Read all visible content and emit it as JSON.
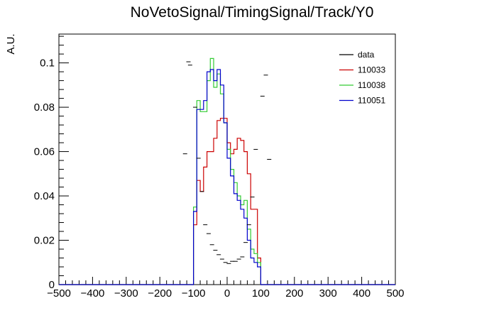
{
  "chart_data": {
    "type": "line",
    "title": "NoVetoSignal/TimingSignal/Track/Y0",
    "xlabel": "",
    "ylabel": "A.U.",
    "xlim": [
      -500,
      500
    ],
    "ylim": [
      0,
      0.113
    ],
    "x_ticks": [
      -500,
      -400,
      -300,
      -200,
      -100,
      0,
      100,
      200,
      300,
      400,
      500
    ],
    "x_tick_labels": [
      "−500",
      "−400",
      "−300",
      "−200",
      "−100",
      "0",
      "100",
      "200",
      "300",
      "400",
      "500"
    ],
    "y_ticks": [
      0,
      0.02,
      0.04,
      0.06,
      0.08,
      0.1
    ],
    "y_tick_labels": [
      "0",
      "0.02",
      "0.04",
      "0.06",
      "0.08",
      "0.1"
    ],
    "legend": {
      "placement": "top-right",
      "entries": [
        {
          "label": "data",
          "color": "#000000"
        },
        {
          "label": "110033",
          "color": "#cc0000"
        },
        {
          "label": "110038",
          "color": "#33cc33"
        },
        {
          "label": "110051",
          "color": "#0000cc"
        }
      ]
    },
    "bin_edges": [
      -110,
      -100,
      -90,
      -80,
      -70,
      -60,
      -50,
      -40,
      -30,
      -20,
      -10,
      0,
      10,
      20,
      30,
      40,
      50,
      60,
      70,
      80,
      90,
      100
    ],
    "data_points": [
      {
        "x": -125,
        "y": 0.059
      },
      {
        "x": -115,
        "y": 0.1005
      },
      {
        "x": -110,
        "y": 0.099
      },
      {
        "x": -95,
        "y": 0.08
      },
      {
        "x": -85,
        "y": 0.057
      },
      {
        "x": -75,
        "y": 0.042
      },
      {
        "x": -65,
        "y": 0.027
      },
      {
        "x": -55,
        "y": 0.023
      },
      {
        "x": -45,
        "y": 0.018
      },
      {
        "x": -35,
        "y": 0.0155
      },
      {
        "x": -25,
        "y": 0.0135
      },
      {
        "x": -15,
        "y": 0.0115
      },
      {
        "x": -5,
        "y": 0.01
      },
      {
        "x": 5,
        "y": 0.0095
      },
      {
        "x": 15,
        "y": 0.0105
      },
      {
        "x": 25,
        "y": 0.0105
      },
      {
        "x": 35,
        "y": 0.0115
      },
      {
        "x": 45,
        "y": 0.0125
      },
      {
        "x": 55,
        "y": 0.019
      },
      {
        "x": 65,
        "y": 0.027
      },
      {
        "x": 75,
        "y": 0.0395
      },
      {
        "x": 85,
        "y": 0.061
      },
      {
        "x": 105,
        "y": 0.085
      },
      {
        "x": 115,
        "y": 0.0945
      },
      {
        "x": 125,
        "y": 0.0565
      }
    ],
    "series": [
      {
        "name": "110033",
        "color": "#cc0000",
        "values": [
          0.0,
          0.027,
          0.047,
          0.042,
          0.053,
          0.06,
          0.06,
          0.066,
          0.074,
          0.075,
          0.075,
          0.064,
          0.059,
          0.061,
          0.066,
          0.065,
          0.06,
          0.05,
          0.034,
          0.034,
          0.012
        ]
      },
      {
        "name": "110038",
        "color": "#33cc33",
        "values": [
          0.0,
          0.035,
          0.083,
          0.078,
          0.078,
          0.092,
          0.102,
          0.089,
          0.095,
          0.086,
          0.073,
          0.061,
          0.052,
          0.046,
          0.04,
          0.036,
          0.038,
          0.025,
          0.016,
          0.014,
          0.01
        ]
      },
      {
        "name": "110051",
        "color": "#0000cc",
        "values": [
          0.0,
          0.033,
          0.079,
          0.079,
          0.083,
          0.096,
          0.097,
          0.092,
          0.097,
          0.09,
          0.073,
          0.057,
          0.049,
          0.041,
          0.038,
          0.034,
          0.03,
          0.02,
          0.012,
          0.01,
          0.008
        ]
      }
    ]
  }
}
